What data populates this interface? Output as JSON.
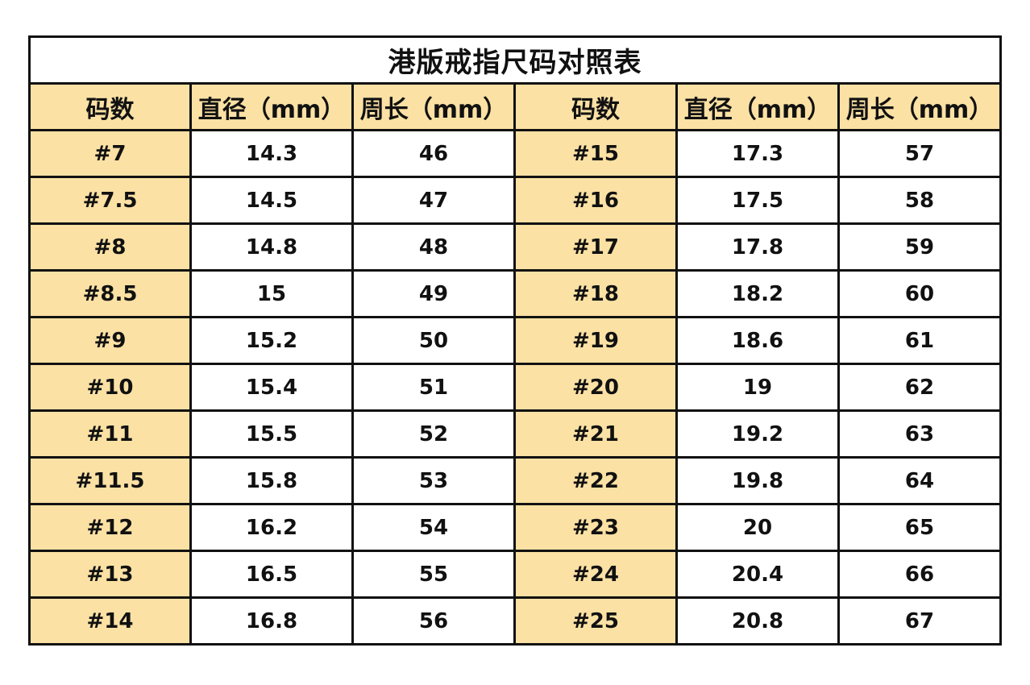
{
  "colors": {
    "accent": "#fbe1a4",
    "border": "#111111"
  },
  "table": {
    "title": "港版戒指尺码对照表",
    "headers": [
      "码数",
      "直径（mm）",
      "周长（mm）",
      "码数",
      "直径（mm）",
      "周长（mm）"
    ],
    "rows": [
      [
        "#7",
        "14.3",
        "46",
        "#15",
        "17.3",
        "57"
      ],
      [
        "#7.5",
        "14.5",
        "47",
        "#16",
        "17.5",
        "58"
      ],
      [
        "#8",
        "14.8",
        "48",
        "#17",
        "17.8",
        "59"
      ],
      [
        "#8.5",
        "15",
        "49",
        "#18",
        "18.2",
        "60"
      ],
      [
        "#9",
        "15.2",
        "50",
        "#19",
        "18.6",
        "61"
      ],
      [
        "#10",
        "15.4",
        "51",
        "#20",
        "19",
        "62"
      ],
      [
        "#11",
        "15.5",
        "52",
        "#21",
        "19.2",
        "63"
      ],
      [
        "#11.5",
        "15.8",
        "53",
        "#22",
        "19.8",
        "64"
      ],
      [
        "#12",
        "16.2",
        "54",
        "#23",
        "20",
        "65"
      ],
      [
        "#13",
        "16.5",
        "55",
        "#24",
        "20.4",
        "66"
      ],
      [
        "#14",
        "16.8",
        "56",
        "#25",
        "20.8",
        "67"
      ]
    ]
  }
}
